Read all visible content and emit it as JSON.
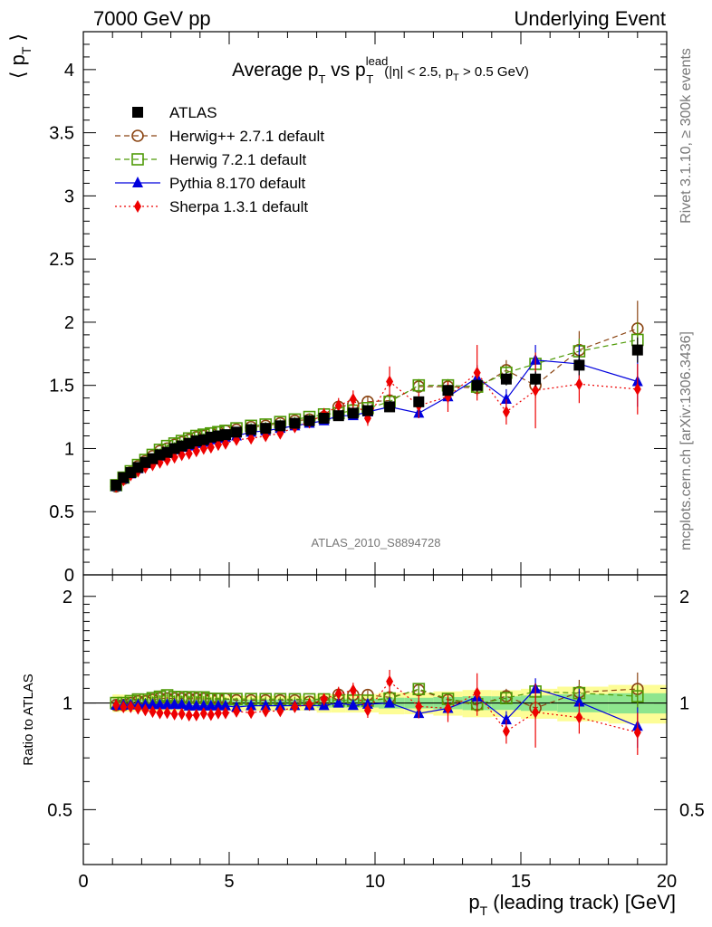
{
  "header": {
    "left": "7000 GeV pp",
    "right": "Underlying Event"
  },
  "side_labels": {
    "rivet": "Rivet 3.1.10, ≥ 300k events",
    "mcplots": "mcplots.cern.ch [arXiv:1306.3436]"
  },
  "watermark": "ATLAS_2010_S8894728",
  "chart_data": {
    "type": "scatter",
    "title": "Average p_T vs p_T^lead (|η| < 2.5, p_T > 0.5 GeV)",
    "title_parts": {
      "main1": "Average p",
      "sub1": "T",
      "main2": " vs p",
      "sup2": "lead",
      "sub2": "T",
      "cuts_a": "(|η| < 2.5, p",
      "cuts_sub": "T",
      "cuts_b": " > 0.5 GeV)"
    },
    "xlabel": "p_T (leading track) [GeV]",
    "xlabel_parts": {
      "a": "p",
      "sub": "T",
      "b": " (leading track) [GeV]"
    },
    "ylabel": "⟨ p_T ⟩",
    "ylabel_parts": {
      "a": "⟨ p",
      "sub": "T",
      "b": " ⟩"
    },
    "ratio_ylabel": "Ratio to ATLAS",
    "xlim": [
      0,
      20
    ],
    "ylim": [
      0,
      4.3
    ],
    "ratio_ylim": [
      0.35,
      2.3
    ],
    "ratio_ticks": [
      "0.5",
      "1",
      "2"
    ],
    "x_ticks": [
      "0",
      "5",
      "10",
      "15",
      "20"
    ],
    "y_ticks": [
      "0",
      "0.5",
      "1",
      "1.5",
      "2",
      "2.5",
      "3",
      "3.5",
      "4"
    ],
    "legend_position": "top-left",
    "x": [
      1.125,
      1.375,
      1.625,
      1.875,
      2.125,
      2.375,
      2.625,
      2.875,
      3.125,
      3.375,
      3.625,
      3.875,
      4.125,
      4.375,
      4.625,
      4.875,
      5.25,
      5.75,
      6.25,
      6.75,
      7.25,
      7.75,
      8.25,
      8.75,
      9.25,
      9.75,
      10.5,
      11.5,
      12.5,
      13.5,
      14.5,
      15.5,
      17.0,
      19.0
    ],
    "series": [
      {
        "name": "ATLAS",
        "color": "#000000",
        "marker": "square",
        "values": [
          0.71,
          0.77,
          0.81,
          0.85,
          0.89,
          0.92,
          0.95,
          0.97,
          1.0,
          1.02,
          1.04,
          1.06,
          1.07,
          1.09,
          1.1,
          1.11,
          1.13,
          1.15,
          1.16,
          1.18,
          1.2,
          1.22,
          1.24,
          1.26,
          1.28,
          1.3,
          1.33,
          1.37,
          1.46,
          1.5,
          1.55,
          1.55,
          1.66,
          1.78
        ],
        "errors": [
          0.01,
          0.01,
          0.01,
          0.01,
          0.01,
          0.01,
          0.01,
          0.01,
          0.01,
          0.01,
          0.01,
          0.01,
          0.01,
          0.01,
          0.01,
          0.01,
          0.01,
          0.01,
          0.01,
          0.01,
          0.01,
          0.01,
          0.02,
          0.02,
          0.02,
          0.02,
          0.03,
          0.03,
          0.04,
          0.05,
          0.05,
          0.06,
          0.08,
          0.1
        ]
      },
      {
        "name": "Herwig++ 2.7.1 default",
        "color": "#8B4513",
        "marker": "circle",
        "values": [
          0.7,
          0.76,
          0.81,
          0.86,
          0.9,
          0.94,
          0.98,
          1.0,
          1.03,
          1.05,
          1.07,
          1.09,
          1.1,
          1.12,
          1.13,
          1.14,
          1.15,
          1.17,
          1.18,
          1.2,
          1.22,
          1.23,
          1.25,
          1.33,
          1.35,
          1.37,
          1.38,
          1.49,
          1.49,
          1.48,
          1.62,
          1.5,
          1.78,
          1.95
        ],
        "errors": [
          0.01,
          0.01,
          0.01,
          0.01,
          0.01,
          0.01,
          0.01,
          0.01,
          0.01,
          0.01,
          0.01,
          0.01,
          0.01,
          0.01,
          0.01,
          0.01,
          0.01,
          0.02,
          0.02,
          0.02,
          0.02,
          0.03,
          0.03,
          0.03,
          0.04,
          0.04,
          0.04,
          0.05,
          0.05,
          0.06,
          0.08,
          0.1,
          0.15,
          0.22
        ]
      },
      {
        "name": "Herwig 7.2.1 default",
        "color": "#4E9A06",
        "marker": "square-open",
        "values": [
          0.71,
          0.77,
          0.82,
          0.87,
          0.91,
          0.95,
          0.99,
          1.02,
          1.04,
          1.06,
          1.08,
          1.1,
          1.11,
          1.12,
          1.13,
          1.14,
          1.16,
          1.18,
          1.19,
          1.21,
          1.23,
          1.25,
          1.27,
          1.28,
          1.3,
          1.32,
          1.37,
          1.5,
          1.5,
          1.49,
          1.6,
          1.67,
          1.77,
          1.86
        ],
        "errors": [
          0.01,
          0.01,
          0.01,
          0.01,
          0.01,
          0.01,
          0.01,
          0.01,
          0.01,
          0.01,
          0.01,
          0.01,
          0.01,
          0.01,
          0.01,
          0.01,
          0.01,
          0.02,
          0.02,
          0.02,
          0.02,
          0.03,
          0.03,
          0.03,
          0.04,
          0.04,
          0.04,
          0.05,
          0.05,
          0.06,
          0.06,
          0.08,
          0.1,
          0.14
        ]
      },
      {
        "name": "Pythia 8.170 default",
        "color": "#0000DD",
        "marker": "triangle",
        "values": [
          0.7,
          0.76,
          0.8,
          0.84,
          0.88,
          0.91,
          0.94,
          0.96,
          0.99,
          1.01,
          1.02,
          1.04,
          1.05,
          1.07,
          1.08,
          1.09,
          1.1,
          1.13,
          1.14,
          1.16,
          1.18,
          1.2,
          1.22,
          1.26,
          1.26,
          1.29,
          1.33,
          1.28,
          1.41,
          1.56,
          1.39,
          1.7,
          1.67,
          1.53
        ],
        "errors": [
          0.01,
          0.01,
          0.01,
          0.01,
          0.01,
          0.01,
          0.01,
          0.01,
          0.01,
          0.01,
          0.01,
          0.01,
          0.01,
          0.01,
          0.01,
          0.01,
          0.01,
          0.01,
          0.02,
          0.02,
          0.02,
          0.02,
          0.02,
          0.03,
          0.03,
          0.03,
          0.03,
          0.04,
          0.05,
          0.1,
          0.08,
          0.12,
          0.15,
          0.2
        ]
      },
      {
        "name": "Sherpa 1.3.1 default",
        "color": "#EE0000",
        "marker": "diamond",
        "values": [
          0.7,
          0.75,
          0.79,
          0.82,
          0.85,
          0.87,
          0.89,
          0.91,
          0.93,
          0.95,
          0.96,
          0.98,
          1.0,
          1.01,
          1.03,
          1.04,
          1.07,
          1.08,
          1.1,
          1.12,
          1.17,
          1.21,
          1.27,
          1.34,
          1.39,
          1.24,
          1.53,
          1.34,
          1.41,
          1.6,
          1.29,
          1.46,
          1.51,
          1.47
        ],
        "errors": [
          0.01,
          0.01,
          0.01,
          0.01,
          0.01,
          0.01,
          0.01,
          0.01,
          0.01,
          0.01,
          0.01,
          0.01,
          0.01,
          0.01,
          0.02,
          0.02,
          0.02,
          0.02,
          0.03,
          0.03,
          0.04,
          0.05,
          0.05,
          0.06,
          0.07,
          0.06,
          0.12,
          0.1,
          0.12,
          0.22,
          0.1,
          0.3,
          0.15,
          0.2
        ]
      }
    ]
  }
}
